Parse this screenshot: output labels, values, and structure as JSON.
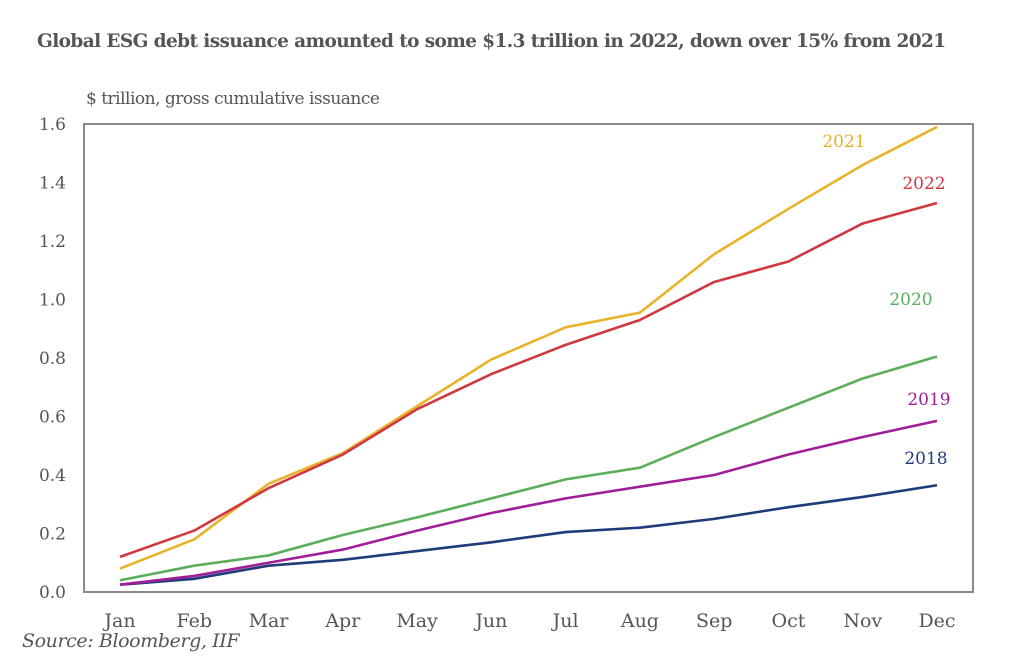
{
  "chart_data": {
    "type": "line",
    "title": "Global ESG debt issuance amounted to some $1.3 trillion in 2022, down over 15% from 2021",
    "ylabel": "$ trillion, gross cumulative issuance",
    "xlabel": "",
    "source": "Source: Bloomberg, IIF",
    "categories": [
      "Jan",
      "Feb",
      "Mar",
      "Apr",
      "May",
      "Jun",
      "Jul",
      "Aug",
      "Sep",
      "Oct",
      "Nov",
      "Dec"
    ],
    "ylim": [
      0,
      1.6
    ],
    "yticks": [
      "0.0",
      "0.2",
      "0.4",
      "0.6",
      "0.8",
      "1.0",
      "1.2",
      "1.4",
      "1.6"
    ],
    "grid": false,
    "legend": "inline-right",
    "series": [
      {
        "name": "2018",
        "color": "#1f3c7a",
        "values": [
          0.025,
          0.045,
          0.09,
          0.11,
          0.14,
          0.17,
          0.205,
          0.22,
          0.25,
          0.29,
          0.325,
          0.365
        ]
      },
      {
        "name": "2019",
        "color": "#a01e9a",
        "values": [
          0.025,
          0.055,
          0.1,
          0.145,
          0.21,
          0.27,
          0.32,
          0.36,
          0.4,
          0.47,
          0.53,
          0.585
        ]
      },
      {
        "name": "2020",
        "color": "#5bae5b",
        "values": [
          0.04,
          0.09,
          0.125,
          0.195,
          0.255,
          0.32,
          0.385,
          0.425,
          0.53,
          0.63,
          0.73,
          0.805
        ]
      },
      {
        "name": "2021",
        "color": "#e8b32a",
        "values": [
          0.08,
          0.18,
          0.37,
          0.475,
          0.635,
          0.795,
          0.905,
          0.955,
          1.155,
          1.31,
          1.46,
          1.59
        ]
      },
      {
        "name": "2022",
        "color": "#d0383f",
        "values": [
          0.12,
          0.21,
          0.355,
          0.47,
          0.625,
          0.745,
          0.845,
          0.93,
          1.06,
          1.13,
          1.26,
          1.33
        ]
      }
    ]
  }
}
